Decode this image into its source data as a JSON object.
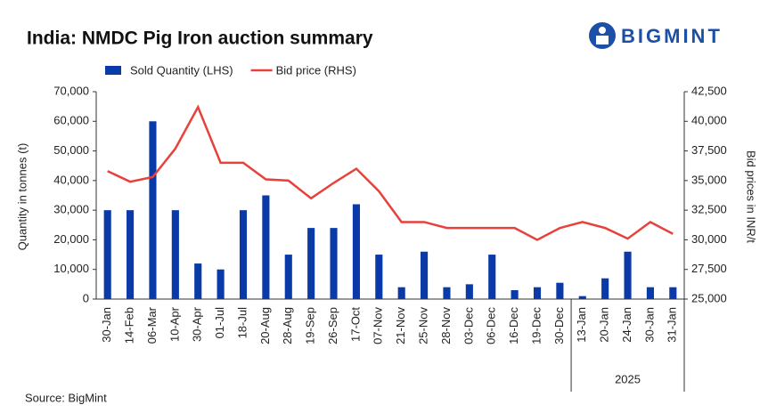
{
  "chart_data": {
    "type": "bar_line",
    "title": "India: NMDC Pig Iron auction summary",
    "brand": "BIGMINT",
    "source": "Source: BigMint",
    "y_label": "Quantity in tonnes (t)",
    "y2_label": "Bid prices in INR/t",
    "categories": [
      "30-Jan",
      "14-Feb",
      "06-Mar",
      "10-Apr",
      "30-Apr",
      "01-Jul",
      "18-Jul",
      "20-Aug",
      "28-Aug",
      "19-Sep",
      "26-Sep",
      "17-Oct",
      "07-Nov",
      "21-Nov",
      "25-Nov",
      "28-Nov",
      "03-Dec",
      "06-Dec",
      "16-Dec",
      "19-Dec",
      "30-Dec",
      "13-Jan",
      "20-Jan",
      "24-Jan",
      "30-Jan",
      "31-Jan"
    ],
    "group": {
      "label": "2025",
      "from": 21,
      "to": 25
    },
    "series": [
      {
        "name": "Sold Quantity (LHS)",
        "color": "#0a3aa8",
        "kind": "bar",
        "values": [
          30000,
          30000,
          60000,
          30000,
          12000,
          10000,
          30000,
          35000,
          15000,
          24000,
          24000,
          32000,
          15000,
          4000,
          16000,
          4000,
          5000,
          15000,
          3000,
          4000,
          5500,
          1000,
          7000,
          16000,
          4000,
          4000
        ]
      },
      {
        "name": "Bid price (RHS)",
        "color": "#e8413c",
        "kind": "line",
        "axis": "y2",
        "values": [
          35800,
          34900,
          35300,
          37700,
          41200,
          36500,
          36500,
          35100,
          35000,
          33500,
          34800,
          36000,
          34100,
          31500,
          31500,
          31000,
          31000,
          31000,
          31000,
          30000,
          31000,
          31500,
          31000,
          30100,
          31500,
          30500
        ]
      }
    ],
    "ylim": [
      0,
      70000
    ],
    "yticks": [
      0,
      {
        "value": 10000,
        "label": "10,000"
      },
      {
        "value": 20000,
        "label": "20,000"
      },
      {
        "value": 30000,
        "label": "30,000"
      },
      {
        "value": 40000,
        "label": "40,000"
      },
      {
        "value": 50000,
        "label": "50,000"
      },
      {
        "value": 60000,
        "label": "60,000"
      },
      {
        "value": 70000,
        "label": "70,000"
      }
    ],
    "y2lim": [
      25000,
      42500
    ],
    "y2ticks": [
      {
        "value": 25000,
        "label": "25,000"
      },
      {
        "value": 27500,
        "label": "27,500"
      },
      {
        "value": 30000,
        "label": "30,000"
      },
      {
        "value": 32500,
        "label": "32,500"
      },
      {
        "value": 35000,
        "label": "35,000"
      },
      {
        "value": 37500,
        "label": "37,500"
      },
      {
        "value": 40000,
        "label": "40,000"
      },
      {
        "value": 42500,
        "label": "42,500"
      }
    ]
  }
}
